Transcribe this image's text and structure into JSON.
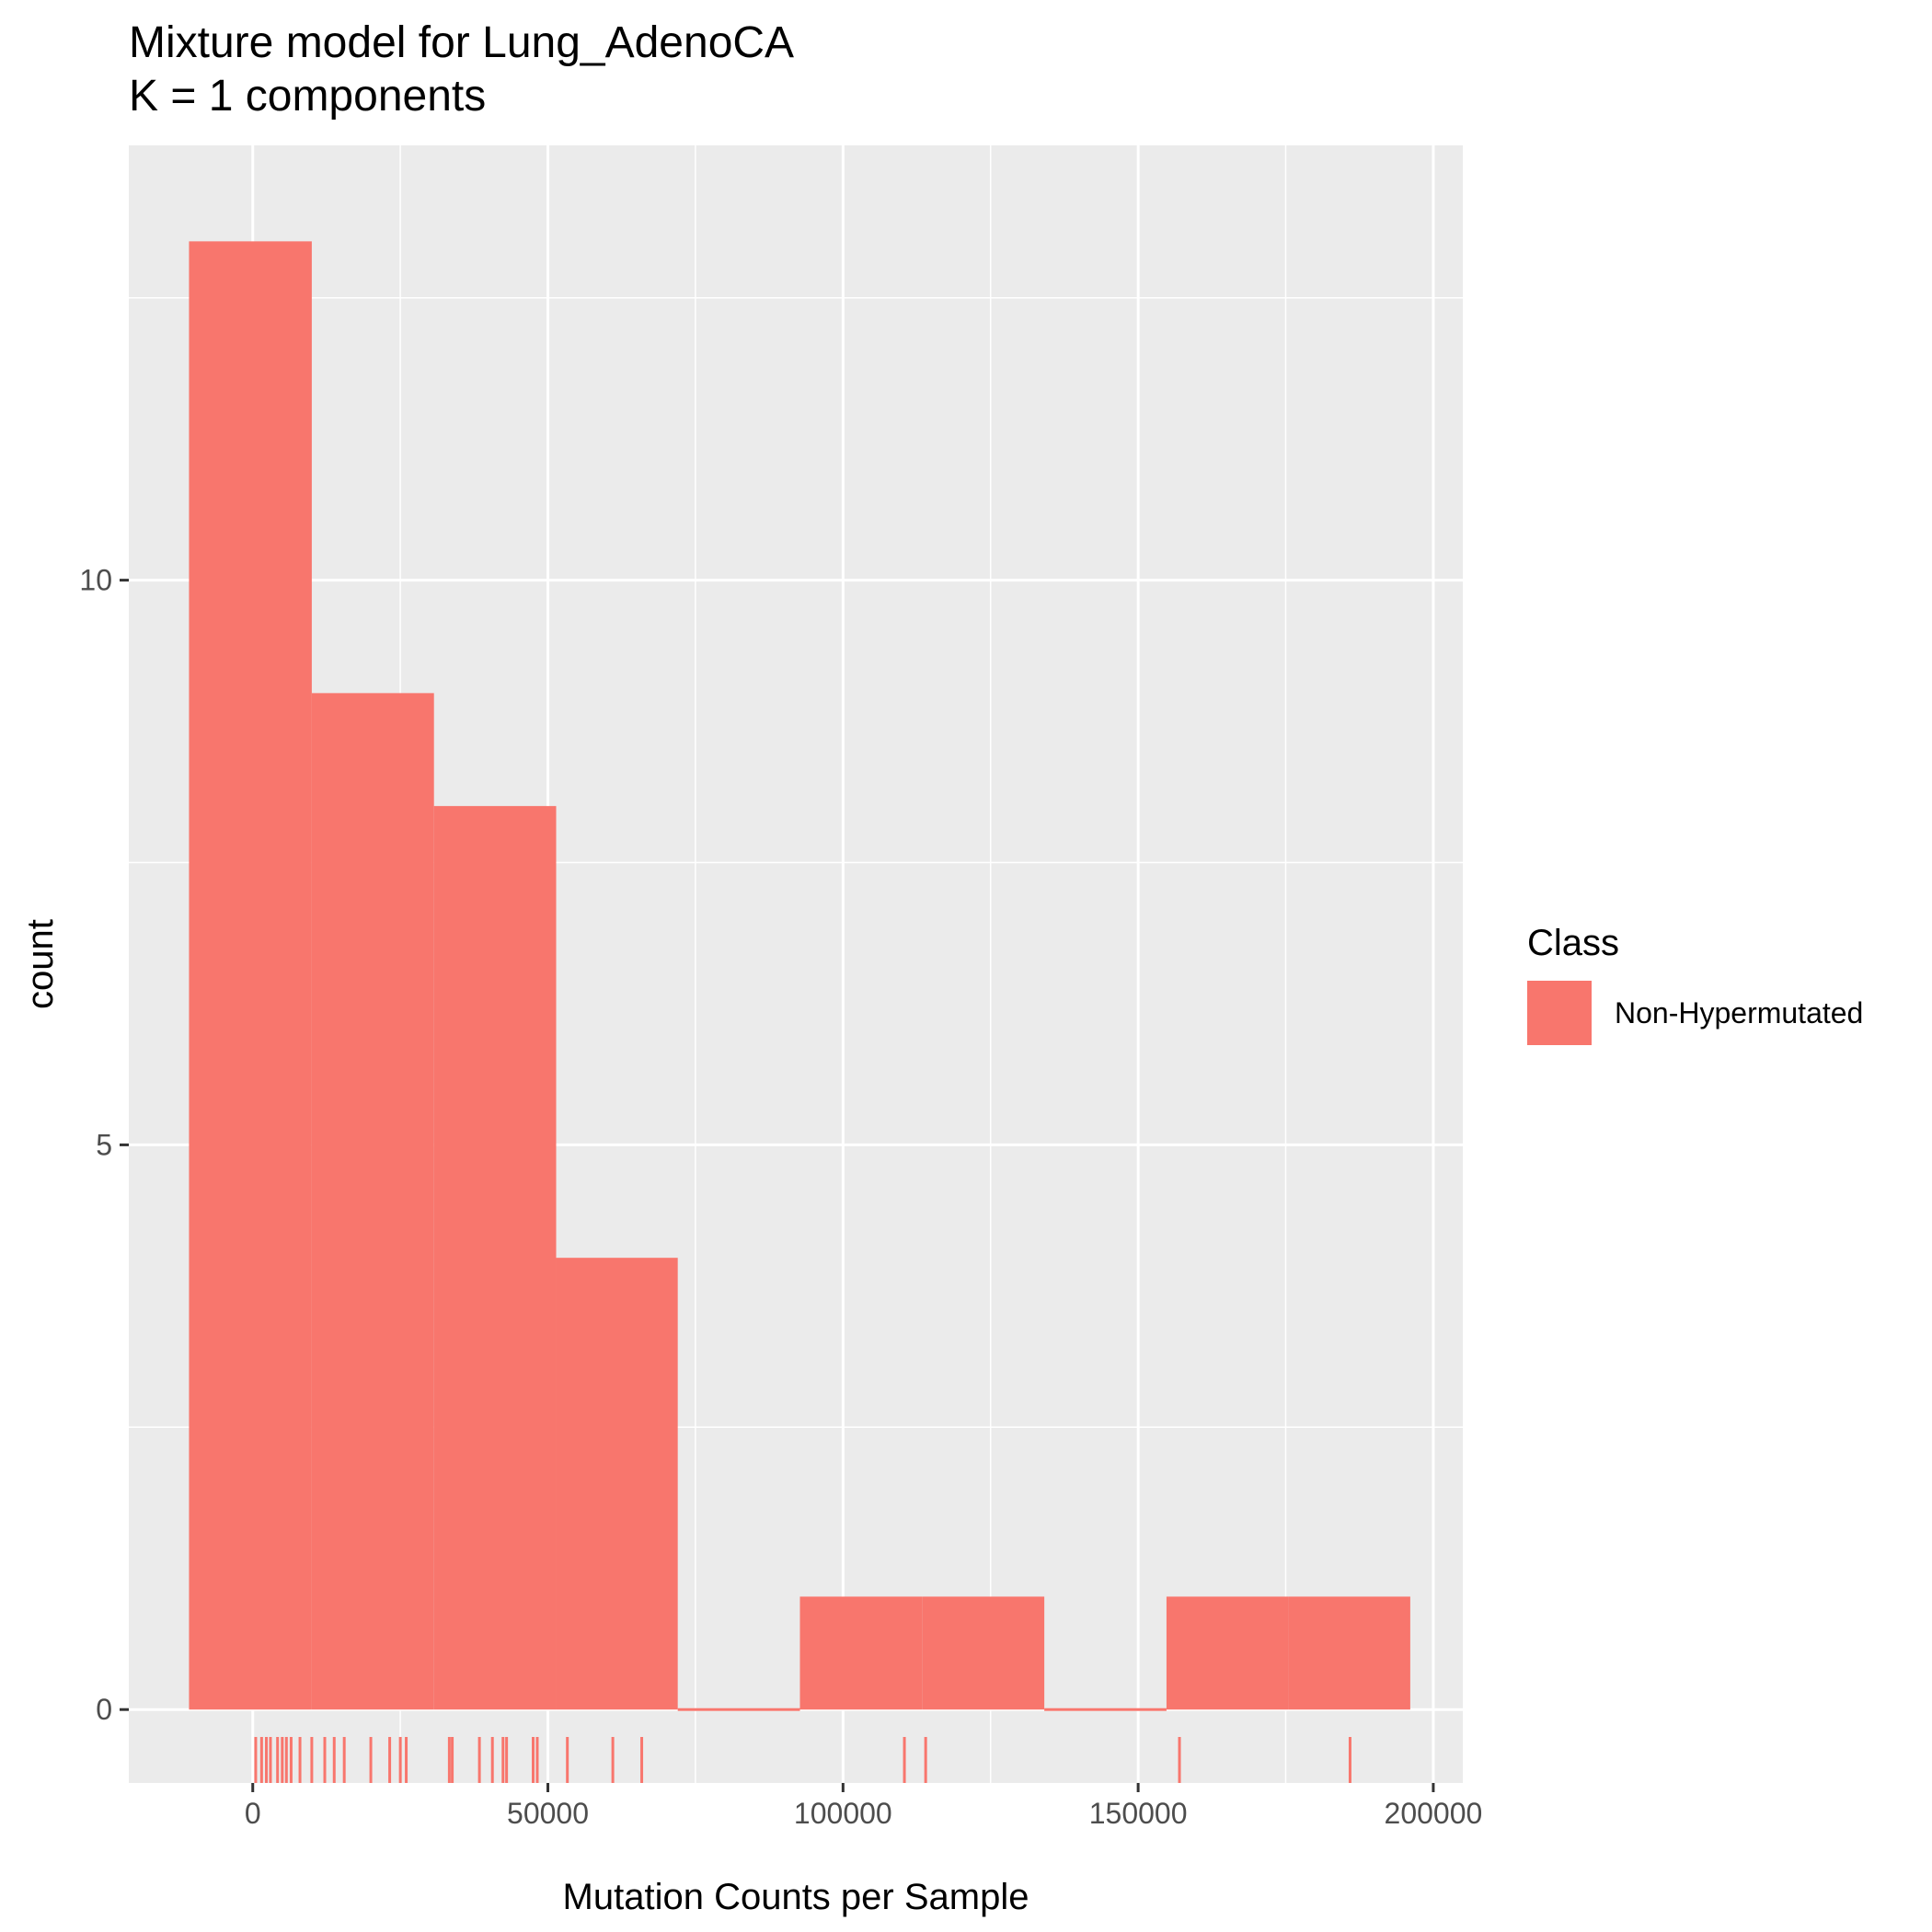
{
  "chart_data": {
    "type": "histogram",
    "title": "Mixture model for Lung_AdenoCA",
    "subtitle": "K = 1 components",
    "xlabel": "Mutation Counts per Sample",
    "ylabel": "count",
    "xlim": [
      -21000,
      205000
    ],
    "ylim": [
      -0.65,
      13.85
    ],
    "x_ticks": [
      0,
      50000,
      100000,
      150000,
      200000
    ],
    "x_tick_labels": [
      "0",
      "50000",
      "100000",
      "150000",
      "200000"
    ],
    "y_ticks": [
      0,
      5,
      10
    ],
    "y_tick_labels": [
      "0",
      "5",
      "10"
    ],
    "bins": [
      {
        "x0": -10800,
        "x1": 10000,
        "count": 13
      },
      {
        "x0": 10000,
        "x1": 30700,
        "count": 9
      },
      {
        "x0": 30700,
        "x1": 51400,
        "count": 8
      },
      {
        "x0": 51400,
        "x1": 72000,
        "count": 4
      },
      {
        "x0": 72000,
        "x1": 92700,
        "count": 0
      },
      {
        "x0": 92700,
        "x1": 113400,
        "count": 1
      },
      {
        "x0": 113400,
        "x1": 134100,
        "count": 1
      },
      {
        "x0": 134100,
        "x1": 154800,
        "count": 0
      },
      {
        "x0": 154800,
        "x1": 175400,
        "count": 1
      },
      {
        "x0": 175400,
        "x1": 196100,
        "count": 1
      }
    ],
    "rug": [
      500,
      1500,
      2300,
      3000,
      4200,
      5000,
      5700,
      6500,
      8000,
      10000,
      12200,
      13800,
      15500,
      20000,
      23200,
      25000,
      26000,
      33300,
      33800,
      38400,
      40600,
      42400,
      43000,
      47500,
      48200,
      53300,
      61000,
      65900,
      110400,
      114000,
      157000,
      185900
    ],
    "series": [
      {
        "name": "Non-Hypermutated",
        "color": "#F8766D"
      }
    ],
    "legend_title": "Class",
    "legend_position": "right",
    "grid": true,
    "colors": {
      "panel": "#EBEBEB",
      "grid": "#FFFFFF",
      "fill": "#F8766D",
      "tick": "#333333"
    }
  }
}
